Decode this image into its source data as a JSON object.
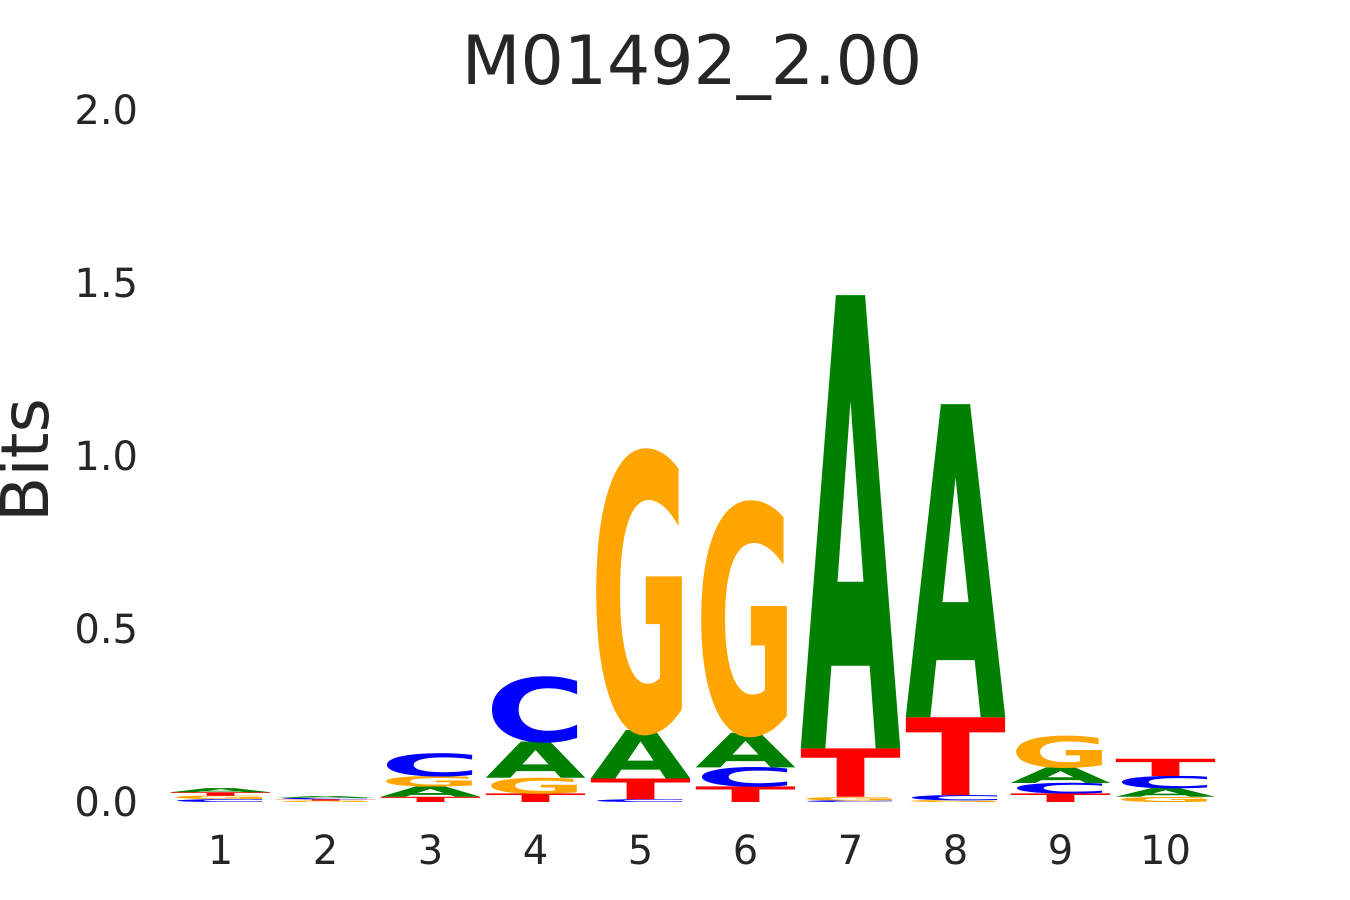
{
  "chart_data": {
    "type": "sequence-logo",
    "title": "M01492_2.00",
    "xlabel": "",
    "ylabel": "Bits",
    "ylim": [
      0,
      2.0
    ],
    "yticks": [
      "0.0",
      "0.5",
      "1.0",
      "1.5",
      "2.0"
    ],
    "ytick_values": [
      0,
      0.5,
      1.0,
      1.5,
      2.0
    ],
    "categories": [
      "1",
      "2",
      "3",
      "4",
      "5",
      "6",
      "7",
      "8",
      "9",
      "10"
    ],
    "colors": {
      "A": "#008000",
      "C": "#0000ff",
      "G": "#ffa500",
      "T": "#ff0000"
    },
    "grid": false,
    "positions": [
      {
        "position": "1",
        "letters": [
          {
            "base": "C",
            "bits": 0.008
          },
          {
            "base": "G",
            "bits": 0.01
          },
          {
            "base": "T",
            "bits": 0.01
          },
          {
            "base": "A",
            "bits": 0.012
          }
        ]
      },
      {
        "position": "2",
        "letters": [
          {
            "base": "G",
            "bits": 0.004
          },
          {
            "base": "T",
            "bits": 0.004
          },
          {
            "base": "C",
            "bits": 0.004
          },
          {
            "base": "A",
            "bits": 0.005
          }
        ]
      },
      {
        "position": "3",
        "letters": [
          {
            "base": "T",
            "bits": 0.015
          },
          {
            "base": "A",
            "bits": 0.03
          },
          {
            "base": "G",
            "bits": 0.03
          },
          {
            "base": "C",
            "bits": 0.065
          }
        ]
      },
      {
        "position": "4",
        "letters": [
          {
            "base": "T",
            "bits": 0.025
          },
          {
            "base": "G",
            "bits": 0.045
          },
          {
            "base": "A",
            "bits": 0.105
          },
          {
            "base": "C",
            "bits": 0.185
          }
        ]
      },
      {
        "position": "5",
        "letters": [
          {
            "base": "C",
            "bits": 0.008
          },
          {
            "base": "T",
            "bits": 0.06
          },
          {
            "base": "A",
            "bits": 0.14
          },
          {
            "base": "G",
            "bits": 0.8
          }
        ]
      },
      {
        "position": "6",
        "letters": [
          {
            "base": "T",
            "bits": 0.045
          },
          {
            "base": "C",
            "bits": 0.055
          },
          {
            "base": "A",
            "bits": 0.1
          },
          {
            "base": "G",
            "bits": 0.66
          }
        ]
      },
      {
        "position": "7",
        "letters": [
          {
            "base": "C",
            "bits": 0.005
          },
          {
            "base": "G",
            "bits": 0.01
          },
          {
            "base": "T",
            "bits": 0.14
          },
          {
            "base": "A",
            "bits": 1.31
          }
        ]
      },
      {
        "position": "8",
        "letters": [
          {
            "base": "G",
            "bits": 0.005
          },
          {
            "base": "C",
            "bits": 0.015
          },
          {
            "base": "T",
            "bits": 0.225
          },
          {
            "base": "A",
            "bits": 0.905
          }
        ]
      },
      {
        "position": "9",
        "letters": [
          {
            "base": "T",
            "bits": 0.025
          },
          {
            "base": "C",
            "bits": 0.03
          },
          {
            "base": "A",
            "bits": 0.045
          },
          {
            "base": "G",
            "bits": 0.09
          }
        ]
      },
      {
        "position": "10",
        "letters": [
          {
            "base": "G",
            "bits": 0.015
          },
          {
            "base": "A",
            "bits": 0.025
          },
          {
            "base": "C",
            "bits": 0.035
          },
          {
            "base": "T",
            "bits": 0.05
          }
        ]
      }
    ]
  }
}
